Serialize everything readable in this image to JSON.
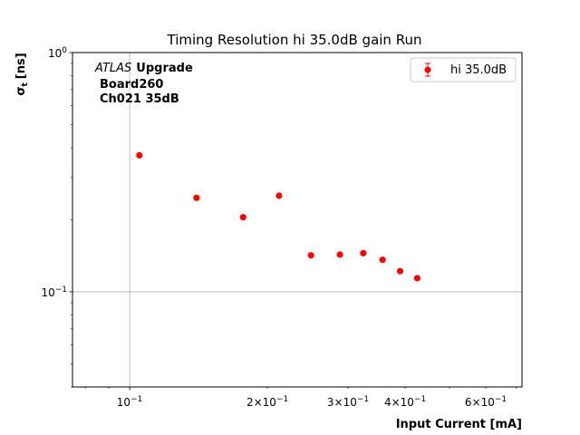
{
  "chart_data": {
    "type": "scatter",
    "title": "Timing Resolution hi 35.0dB gain Run",
    "xlabel": "Input Current [mA]",
    "ylabel_main": "σ",
    "ylabel_sub": "t",
    "ylabel_unit": "[ns]",
    "x_scale": "log",
    "y_scale": "log",
    "xlim": [
      0.075,
      0.72
    ],
    "ylim": [
      0.04,
      1.0
    ],
    "x_ticks": [
      {
        "value": 0.1,
        "base": "10",
        "exp": "−1",
        "mant": ""
      },
      {
        "value": 0.2,
        "base": "10",
        "exp": "−1",
        "mant": "2×"
      },
      {
        "value": 0.3,
        "base": "10",
        "exp": "−1",
        "mant": "3×"
      },
      {
        "value": 0.4,
        "base": "10",
        "exp": "−1",
        "mant": "4×"
      },
      {
        "value": 0.6,
        "base": "10",
        "exp": "−1",
        "mant": "6×"
      }
    ],
    "y_ticks": [
      {
        "value": 1.0,
        "base": "10",
        "exp": "0"
      },
      {
        "value": 0.1,
        "base": "10",
        "exp": "−1"
      }
    ],
    "grid": "major",
    "legend_position": "top-right",
    "marker_color": "#ff0000",
    "series": [
      {
        "name": "hi 35.0dB",
        "x": [
          0.105,
          0.14,
          0.177,
          0.212,
          0.249,
          0.288,
          0.324,
          0.357,
          0.39,
          0.425
        ],
        "y": [
          0.372,
          0.247,
          0.205,
          0.252,
          0.142,
          0.143,
          0.145,
          0.136,
          0.122,
          0.114
        ]
      }
    ],
    "annotation": {
      "line1_italic": "ATLAS",
      "line1_bold": "Upgrade",
      "line2": "Board260",
      "line3": "Ch021 35dB"
    }
  }
}
